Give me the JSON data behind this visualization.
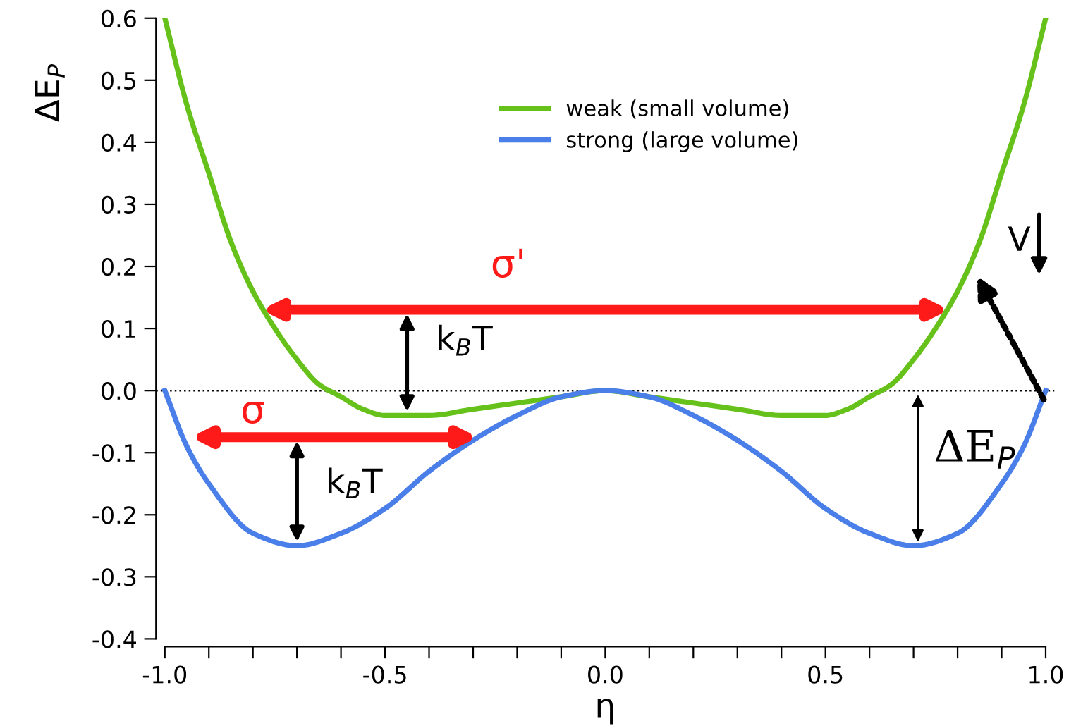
{
  "chart_data": {
    "type": "line",
    "xlabel": "η",
    "ylabel": "ΔE$_{P}$",
    "series": [
      {
        "name": "weak (small volume)",
        "color": "#66c21a",
        "x": [
          -1.0,
          -0.95,
          -0.9,
          -0.85,
          -0.8,
          -0.75,
          -0.7,
          -0.65,
          -0.6,
          -0.55,
          -0.5,
          -0.45,
          -0.4,
          -0.3,
          -0.2,
          -0.1,
          0.0,
          0.1,
          0.2,
          0.3,
          0.4,
          0.45,
          0.5,
          0.55,
          0.6,
          0.65,
          0.7,
          0.75,
          0.8,
          0.85,
          0.9,
          0.95,
          1.0
        ],
        "values": [
          0.6,
          0.46,
          0.35,
          0.24,
          0.16,
          0.1,
          0.05,
          0.01,
          -0.01,
          -0.03,
          -0.04,
          -0.04,
          -0.04,
          -0.03,
          -0.02,
          -0.01,
          0.0,
          -0.01,
          -0.02,
          -0.03,
          -0.04,
          -0.04,
          -0.04,
          -0.03,
          -0.01,
          0.01,
          0.05,
          0.1,
          0.16,
          0.24,
          0.35,
          0.46,
          0.6
        ]
      },
      {
        "name": "strong (large volume)",
        "color": "#4a7ee8",
        "x": [
          -1.0,
          -0.95,
          -0.9,
          -0.8,
          -0.7,
          -0.6,
          -0.5,
          -0.4,
          -0.3,
          -0.2,
          -0.1,
          0.0,
          0.1,
          0.2,
          0.3,
          0.4,
          0.5,
          0.6,
          0.7,
          0.8,
          0.9,
          0.95,
          1.0
        ],
        "values": [
          0.0,
          -0.09,
          -0.15,
          -0.23,
          -0.25,
          -0.23,
          -0.19,
          -0.13,
          -0.08,
          -0.04,
          -0.01,
          0.0,
          -0.01,
          -0.04,
          -0.08,
          -0.13,
          -0.19,
          -0.23,
          -0.25,
          -0.23,
          -0.15,
          -0.09,
          0.0
        ]
      }
    ],
    "xlim": [
      -1.02,
      1.02
    ],
    "ylim": [
      -0.4,
      0.6
    ],
    "xticks": [
      {
        "value": -1.0,
        "label": "-1.0"
      },
      {
        "value": -0.9,
        "label": null
      },
      {
        "value": -0.8,
        "label": null
      },
      {
        "value": -0.7,
        "label": null
      },
      {
        "value": -0.6,
        "label": null
      },
      {
        "value": -0.5,
        "label": "-0.5"
      },
      {
        "value": -0.4,
        "label": null
      },
      {
        "value": -0.3,
        "label": null
      },
      {
        "value": -0.2,
        "label": null
      },
      {
        "value": -0.1,
        "label": null
      },
      {
        "value": 0.0,
        "label": "0.0"
      },
      {
        "value": 0.1,
        "label": null
      },
      {
        "value": 0.2,
        "label": null
      },
      {
        "value": 0.3,
        "label": null
      },
      {
        "value": 0.4,
        "label": null
      },
      {
        "value": 0.5,
        "label": "0.5"
      },
      {
        "value": 0.6,
        "label": null
      },
      {
        "value": 0.7,
        "label": null
      },
      {
        "value": 0.8,
        "label": null
      },
      {
        "value": 0.9,
        "label": null
      },
      {
        "value": 1.0,
        "label": "1.0"
      }
    ],
    "yticks": [
      {
        "value": -0.4,
        "label": "-0.4"
      },
      {
        "value": -0.3,
        "label": "-0.3"
      },
      {
        "value": -0.2,
        "label": "-0.2"
      },
      {
        "value": -0.1,
        "label": "-0.1"
      },
      {
        "value": 0.0,
        "label": "0.0"
      },
      {
        "value": 0.1,
        "label": "0.1"
      },
      {
        "value": 0.2,
        "label": "0.2"
      },
      {
        "value": 0.3,
        "label": "0.3"
      },
      {
        "value": 0.4,
        "label": "0.4"
      },
      {
        "value": 0.5,
        "label": "0.5"
      },
      {
        "value": 0.6,
        "label": "0.6"
      }
    ],
    "ref_lines": [
      {
        "axis": "y",
        "value": 0.0,
        "color": "#000000",
        "line_style": "dotted"
      }
    ],
    "annotations": [
      "σ'",
      "k$_{B}$T",
      "σ",
      "k$_{B}$T",
      "ΔE$_{P}$",
      "V"
    ],
    "grid": false,
    "legend": "top",
    "marker": "none",
    "line_style": "solid"
  }
}
